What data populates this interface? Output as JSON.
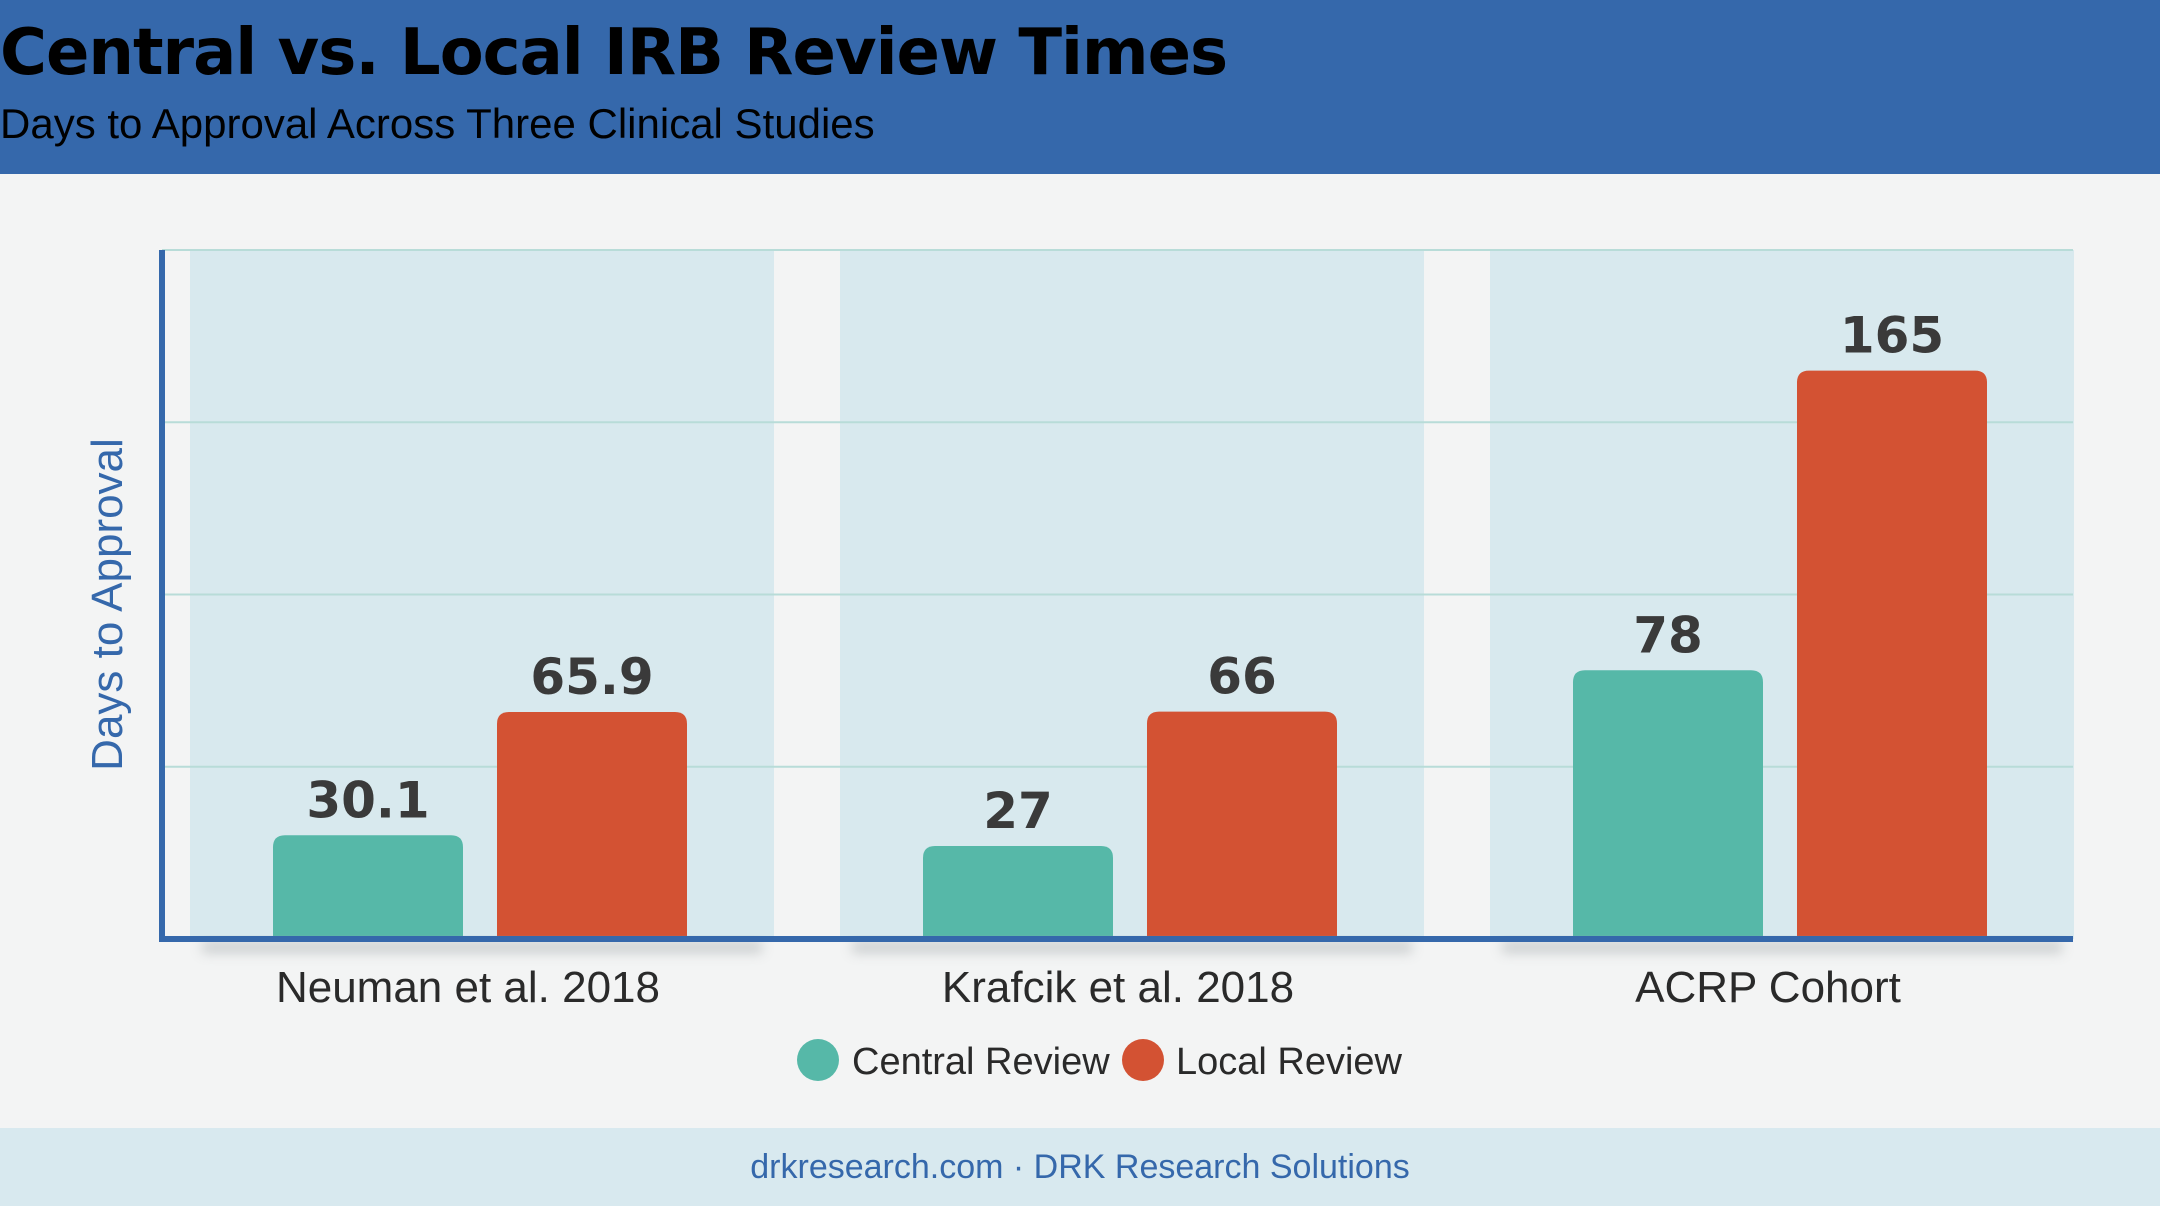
{
  "header": {
    "title": "Central vs. Local IRB Review Times",
    "subtitle": "Days to Approval Across Three Clinical Studies"
  },
  "footer": {
    "text": "drkresearch.com · DRK Research Solutions"
  },
  "colors": {
    "header_bg": "#3568ab",
    "central": "#56b8a8",
    "local": "#d35233",
    "panel": "#d8e9ee",
    "axis": "#3568ab"
  },
  "chart_data": {
    "type": "bar",
    "title": "Central vs. Local IRB Review Times",
    "subtitle": "Days to Approval Across Three Clinical Studies",
    "xlabel": "",
    "ylabel": "Days to Approval",
    "categories": [
      "Neuman et al. 2018",
      "Krafcik et al. 2018",
      "ACRP Cohort"
    ],
    "series": [
      {
        "name": "Central Review",
        "color": "#56b8a8",
        "values": [
          30.1,
          27,
          78
        ],
        "labels": [
          "30.1",
          "27",
          "78"
        ]
      },
      {
        "name": "Local Review",
        "color": "#d35233",
        "values": [
          65.9,
          66,
          165
        ],
        "labels": [
          "65.9",
          "66",
          "165"
        ]
      }
    ],
    "ylim": [
      0,
      200
    ],
    "grid": true,
    "legend": "bottom-center"
  }
}
